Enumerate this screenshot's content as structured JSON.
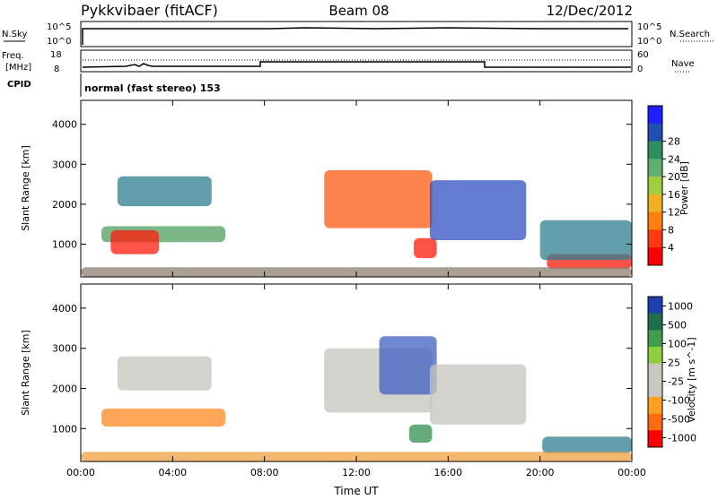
{
  "header": {
    "radar": "Pykkvibaer (fitACF)",
    "beam": "Beam 08",
    "date": "12/Dec/2012"
  },
  "summary_panels": {
    "nsky_label": "N.Sky",
    "nsky_ticks": [
      "10^5",
      "10^0"
    ],
    "nsearch_label": "N.Search",
    "nsearch_ticks": [
      "10^5",
      "10^0"
    ],
    "freq_label": "Freq.",
    "freq_unit": "[MHz]",
    "freq_ticks": [
      "18",
      "8"
    ],
    "nave_label": "Nave",
    "nave_ticks": [
      "60",
      "0"
    ],
    "cpid_label": "CPID",
    "cpid_text": "normal (fast stereo) 153"
  },
  "colors": {
    "power_scale": [
      "#1f1fff",
      "#1f4fb0",
      "#2f8f5f",
      "#5faf6f",
      "#9fcf3f",
      "#f0b020",
      "#ff7f10",
      "#ff3a10",
      "#ff0000"
    ],
    "velocity_scale": [
      "#1f3faf",
      "#1f6f4f",
      "#3f9f4f",
      "#8fcf3f",
      "#c8c8c0",
      "#c8c8c0",
      "#ffa020",
      "#ff6a10",
      "#ff0000"
    ]
  },
  "chart_data": [
    {
      "type": "heatmap",
      "title": "Power",
      "ylabel": "Slant Range [km]",
      "xlabel": "",
      "ylim": [
        180,
        4600
      ],
      "xlim": [
        0,
        24
      ],
      "x_ticks": [
        "00:00",
        "04:00",
        "08:00",
        "12:00",
        "16:00",
        "20:00",
        "00:00"
      ],
      "y_ticks": [
        "1000",
        "2000",
        "3000",
        "4000"
      ],
      "colorbar": {
        "label": "Power [dB]",
        "ticks": [
          "4",
          "8",
          "12",
          "16",
          "20",
          "24",
          "28"
        ]
      },
      "regions": [
        {
          "t0": 0.9,
          "t1": 6.3,
          "r0": 1050,
          "r1": 1450,
          "level": "medium-green"
        },
        {
          "t0": 1.3,
          "t1": 3.4,
          "r0": 750,
          "r1": 1350,
          "level": "red"
        },
        {
          "t0": 1.6,
          "t1": 5.7,
          "r0": 1950,
          "r1": 2700,
          "level": "blue-green"
        },
        {
          "t0": 10.6,
          "t1": 15.3,
          "r0": 1400,
          "r1": 2850,
          "level": "orange-red"
        },
        {
          "t0": 14.5,
          "t1": 15.5,
          "r0": 650,
          "r1": 1150,
          "level": "red"
        },
        {
          "t0": 15.2,
          "t1": 19.4,
          "r0": 1100,
          "r1": 2600,
          "level": "blue"
        },
        {
          "t0": 20.3,
          "t1": 24,
          "r0": 380,
          "r1": 750,
          "level": "red"
        },
        {
          "t0": 20.0,
          "t1": 24,
          "r0": 600,
          "r1": 1600,
          "level": "blue-green"
        },
        {
          "t0": 0,
          "t1": 24,
          "r0": 180,
          "r1": 420,
          "level": "mixed-noise"
        }
      ]
    },
    {
      "type": "heatmap",
      "title": "Velocity",
      "ylabel": "Slant Range [km]",
      "xlabel": "Time UT",
      "ylim": [
        180,
        4600
      ],
      "xlim": [
        0,
        24
      ],
      "x_ticks": [
        "00:00",
        "04:00",
        "08:00",
        "12:00",
        "16:00",
        "20:00",
        "00:00"
      ],
      "y_ticks": [
        "1000",
        "2000",
        "3000",
        "4000"
      ],
      "colorbar": {
        "label": "Velocity [m s^-1]",
        "ticks": [
          "1000",
          "500",
          "100",
          "25",
          "-25",
          "-100",
          "-500",
          "-1000"
        ]
      },
      "regions": [
        {
          "t0": 0.9,
          "t1": 6.3,
          "r0": 1050,
          "r1": 1500,
          "level": "orange"
        },
        {
          "t0": 1.6,
          "t1": 5.7,
          "r0": 1950,
          "r1": 2800,
          "level": "grey"
        },
        {
          "t0": 10.6,
          "t1": 15.3,
          "r0": 1400,
          "r1": 3000,
          "level": "grey"
        },
        {
          "t0": 13.0,
          "t1": 15.5,
          "r0": 1850,
          "r1": 3300,
          "level": "blue-orange"
        },
        {
          "t0": 14.3,
          "t1": 15.3,
          "r0": 650,
          "r1": 1100,
          "level": "green"
        },
        {
          "t0": 15.2,
          "t1": 19.4,
          "r0": 1100,
          "r1": 2600,
          "level": "grey"
        },
        {
          "t0": 20.1,
          "t1": 24,
          "r0": 380,
          "r1": 800,
          "level": "blue-green"
        },
        {
          "t0": 0,
          "t1": 24,
          "r0": 180,
          "r1": 420,
          "level": "orange-low"
        }
      ]
    }
  ]
}
